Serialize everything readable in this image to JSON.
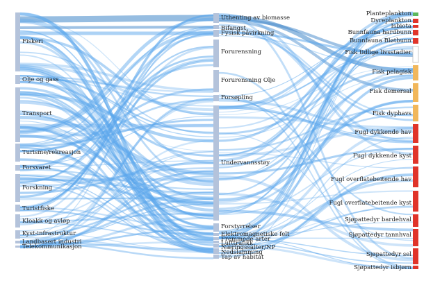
{
  "chart_data": {
    "type": "sankey",
    "colors": {
      "link": "#5aa6ec",
      "link_dark": "#3f86c9",
      "source_node": "#b4c3db",
      "target_ecosystem": "#5cb85c",
      "target_plankton": "#e0342a",
      "target_fish": "#f1b75b",
      "target_bird": "#e0342a"
    },
    "sources": [
      "Fiskeri",
      "Olje og gass",
      "Transport",
      "Turisme/rekreasjon",
      "Forsvaret",
      "Forskning",
      "Turistfiske",
      "Kloakk og avløp",
      "Kyst-infrastruktur",
      "Landbasert industri",
      "Telekommunikasjon"
    ],
    "pressures": [
      "Uthenting av biomasse",
      "Bifangst",
      "Fysisk påvirkning",
      "Forurensning",
      "Forurensning Olje",
      "Forsøpling",
      "Undervannsstøy",
      "Forstyrrelser",
      "Elektromagnetiske felt",
      "Fremmede arter",
      "Lufttrafikk",
      "Næringssalter/NP",
      "Nedslamming",
      "Tap av habitat"
    ],
    "receptors": [
      "Planteplankton",
      "Dyreplankton",
      "Isbiota",
      "Bunnfauna hardbunn",
      "Bunnfauna Bløtbunn",
      "Fisk tidlige livsstadier",
      "Fisk pelagisk",
      "Fisk demersal",
      "Fisk dyphavs",
      "Fugl dykkende hav",
      "Fugl dykkende kyst",
      "Fugl overflatebeitende hav",
      "Fugl overflatebeitende kyst",
      "Sjøpattedyr bardehval",
      "Sjøpattedyr tannhval",
      "Sjøpattedyr sel",
      "Sjøpattedyr isbjørn"
    ]
  }
}
